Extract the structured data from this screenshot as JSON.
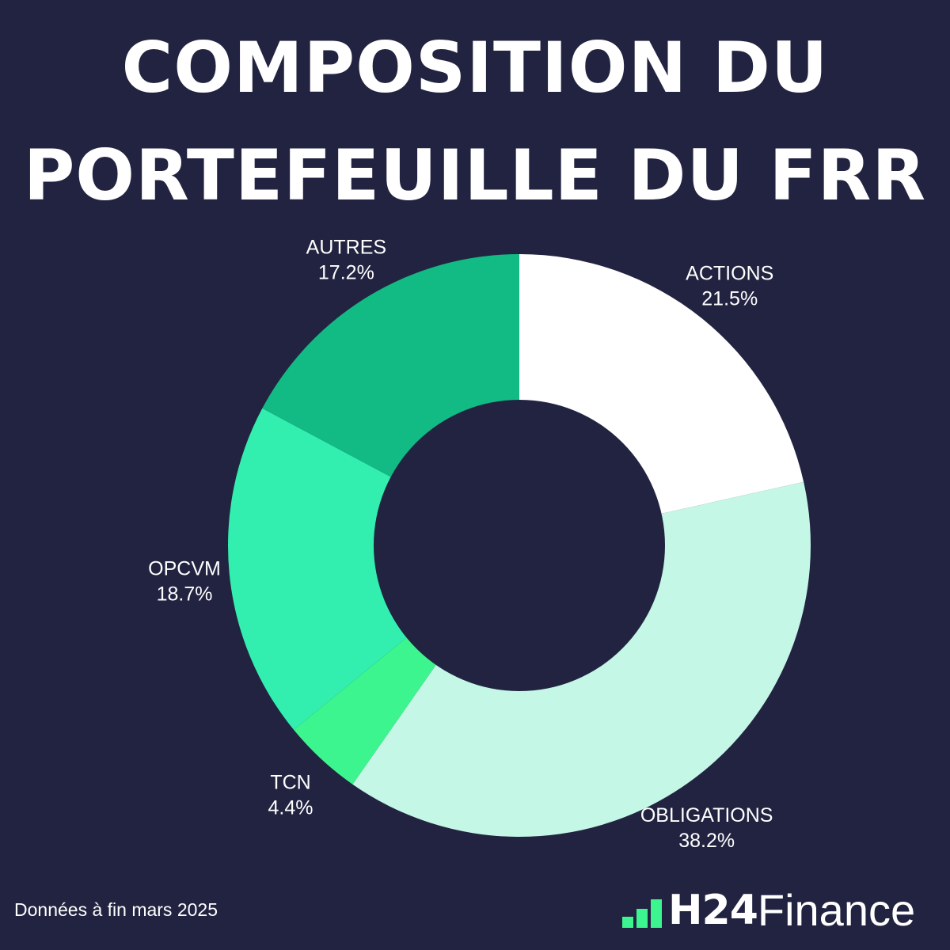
{
  "title": {
    "line1": "COMPOSITION DU",
    "line2": "PORTEFEUILLE DU FRR"
  },
  "footnote": "Données à fin mars 2025",
  "brand": {
    "name": "H24",
    "suffix": "Finance",
    "accent": "#3cf58e"
  },
  "colors": {
    "background": "#222341",
    "text": "#ffffff"
  },
  "chart_data": {
    "type": "pie",
    "donut": true,
    "start": "top",
    "direction": "clockwise",
    "slices": [
      {
        "label": "ACTIONS",
        "value": 21.5,
        "value_label": "21.5%",
        "color": "#ffffff"
      },
      {
        "label": "OBLIGATIONS",
        "value": 38.2,
        "value_label": "38.2%",
        "color": "#c5f7e6"
      },
      {
        "label": "TCN",
        "value": 4.4,
        "value_label": "4.4%",
        "color": "#3cf58e"
      },
      {
        "label": "OPCVM",
        "value": 18.7,
        "value_label": "18.7%",
        "color": "#32efb0"
      },
      {
        "label": "AUTRES",
        "value": 17.2,
        "value_label": "17.2%",
        "color": "#12bb84"
      }
    ]
  }
}
